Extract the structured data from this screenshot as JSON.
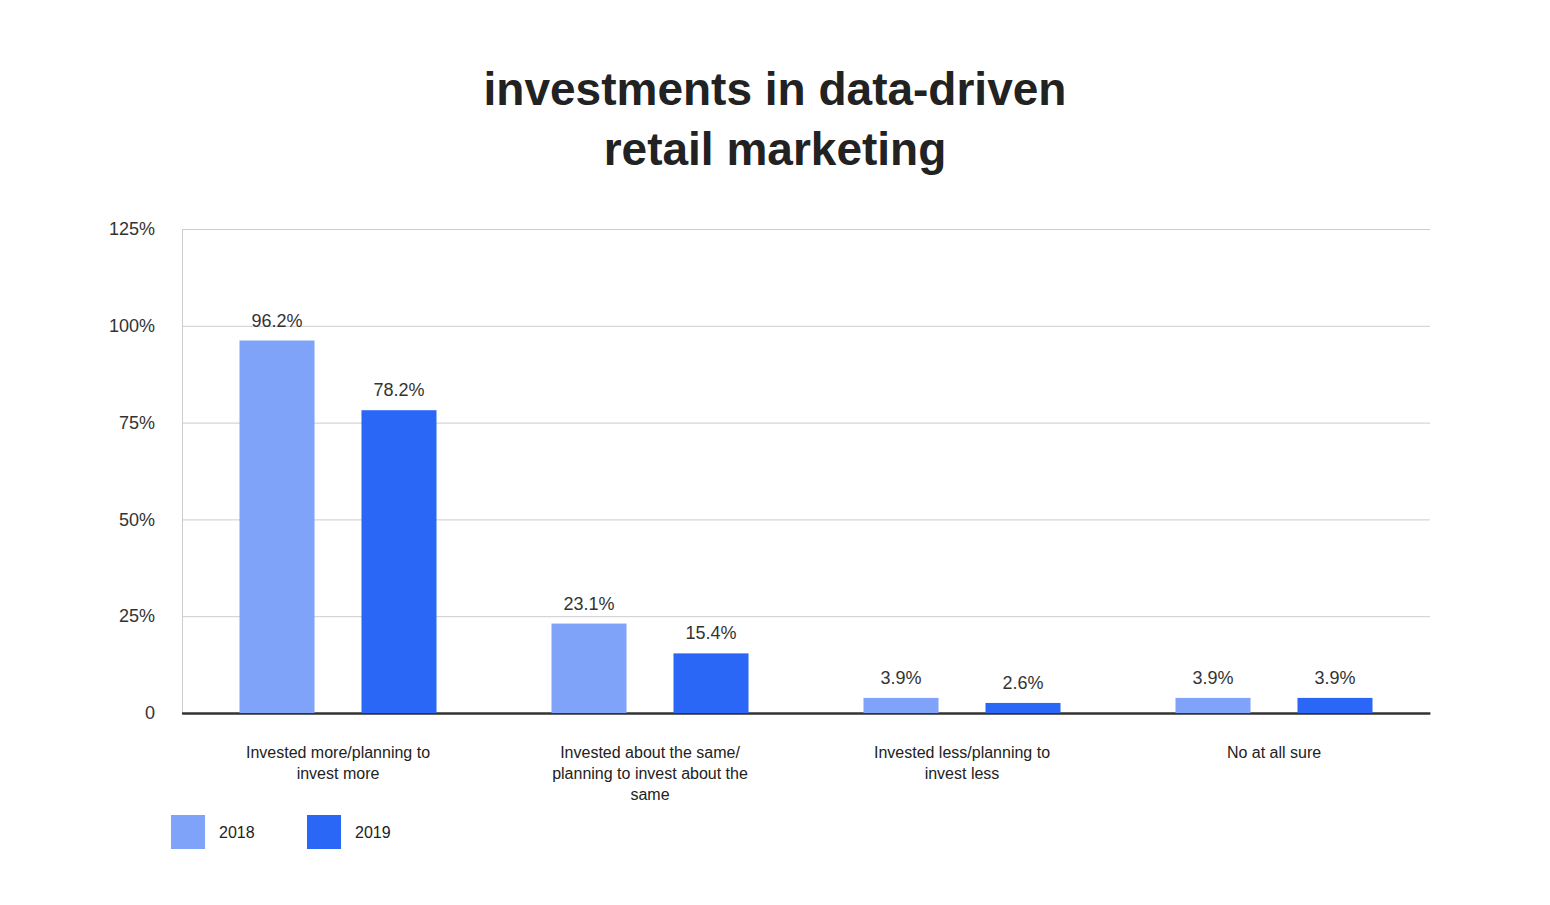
{
  "chart_data": {
    "type": "bar",
    "title": "investments in data-driven retail marketing",
    "categories": [
      "Invested more/planning to invest more",
      "Invested about the same/ planning to invest about the same",
      "Invested less/planning to invest less",
      "No at all sure"
    ],
    "series": [
      {
        "name": "2018",
        "color": "#7fa3f9",
        "values": [
          96.2,
          23.1,
          3.9,
          3.9
        ],
        "value_labels": [
          "96.2%",
          "23.1%",
          "3.9%",
          "3.9%"
        ]
      },
      {
        "name": "2019",
        "color": "#2b67f6",
        "values": [
          78.2,
          15.4,
          2.6,
          3.9
        ],
        "value_labels": [
          "78.2%",
          "15.4%",
          "2.6%",
          "3.9%"
        ]
      }
    ],
    "ylim": [
      0,
      125
    ],
    "yticks": [
      0,
      {
        "value": 25,
        "label": "25%"
      },
      {
        "value": 50,
        "label": "50%"
      },
      {
        "value": 75,
        "label": "75%"
      },
      {
        "value": 100,
        "label": "100%"
      },
      {
        "value": 125,
        "label": "125%"
      }
    ],
    "grid": true,
    "data_labels": true,
    "legend": "bottom-left"
  }
}
